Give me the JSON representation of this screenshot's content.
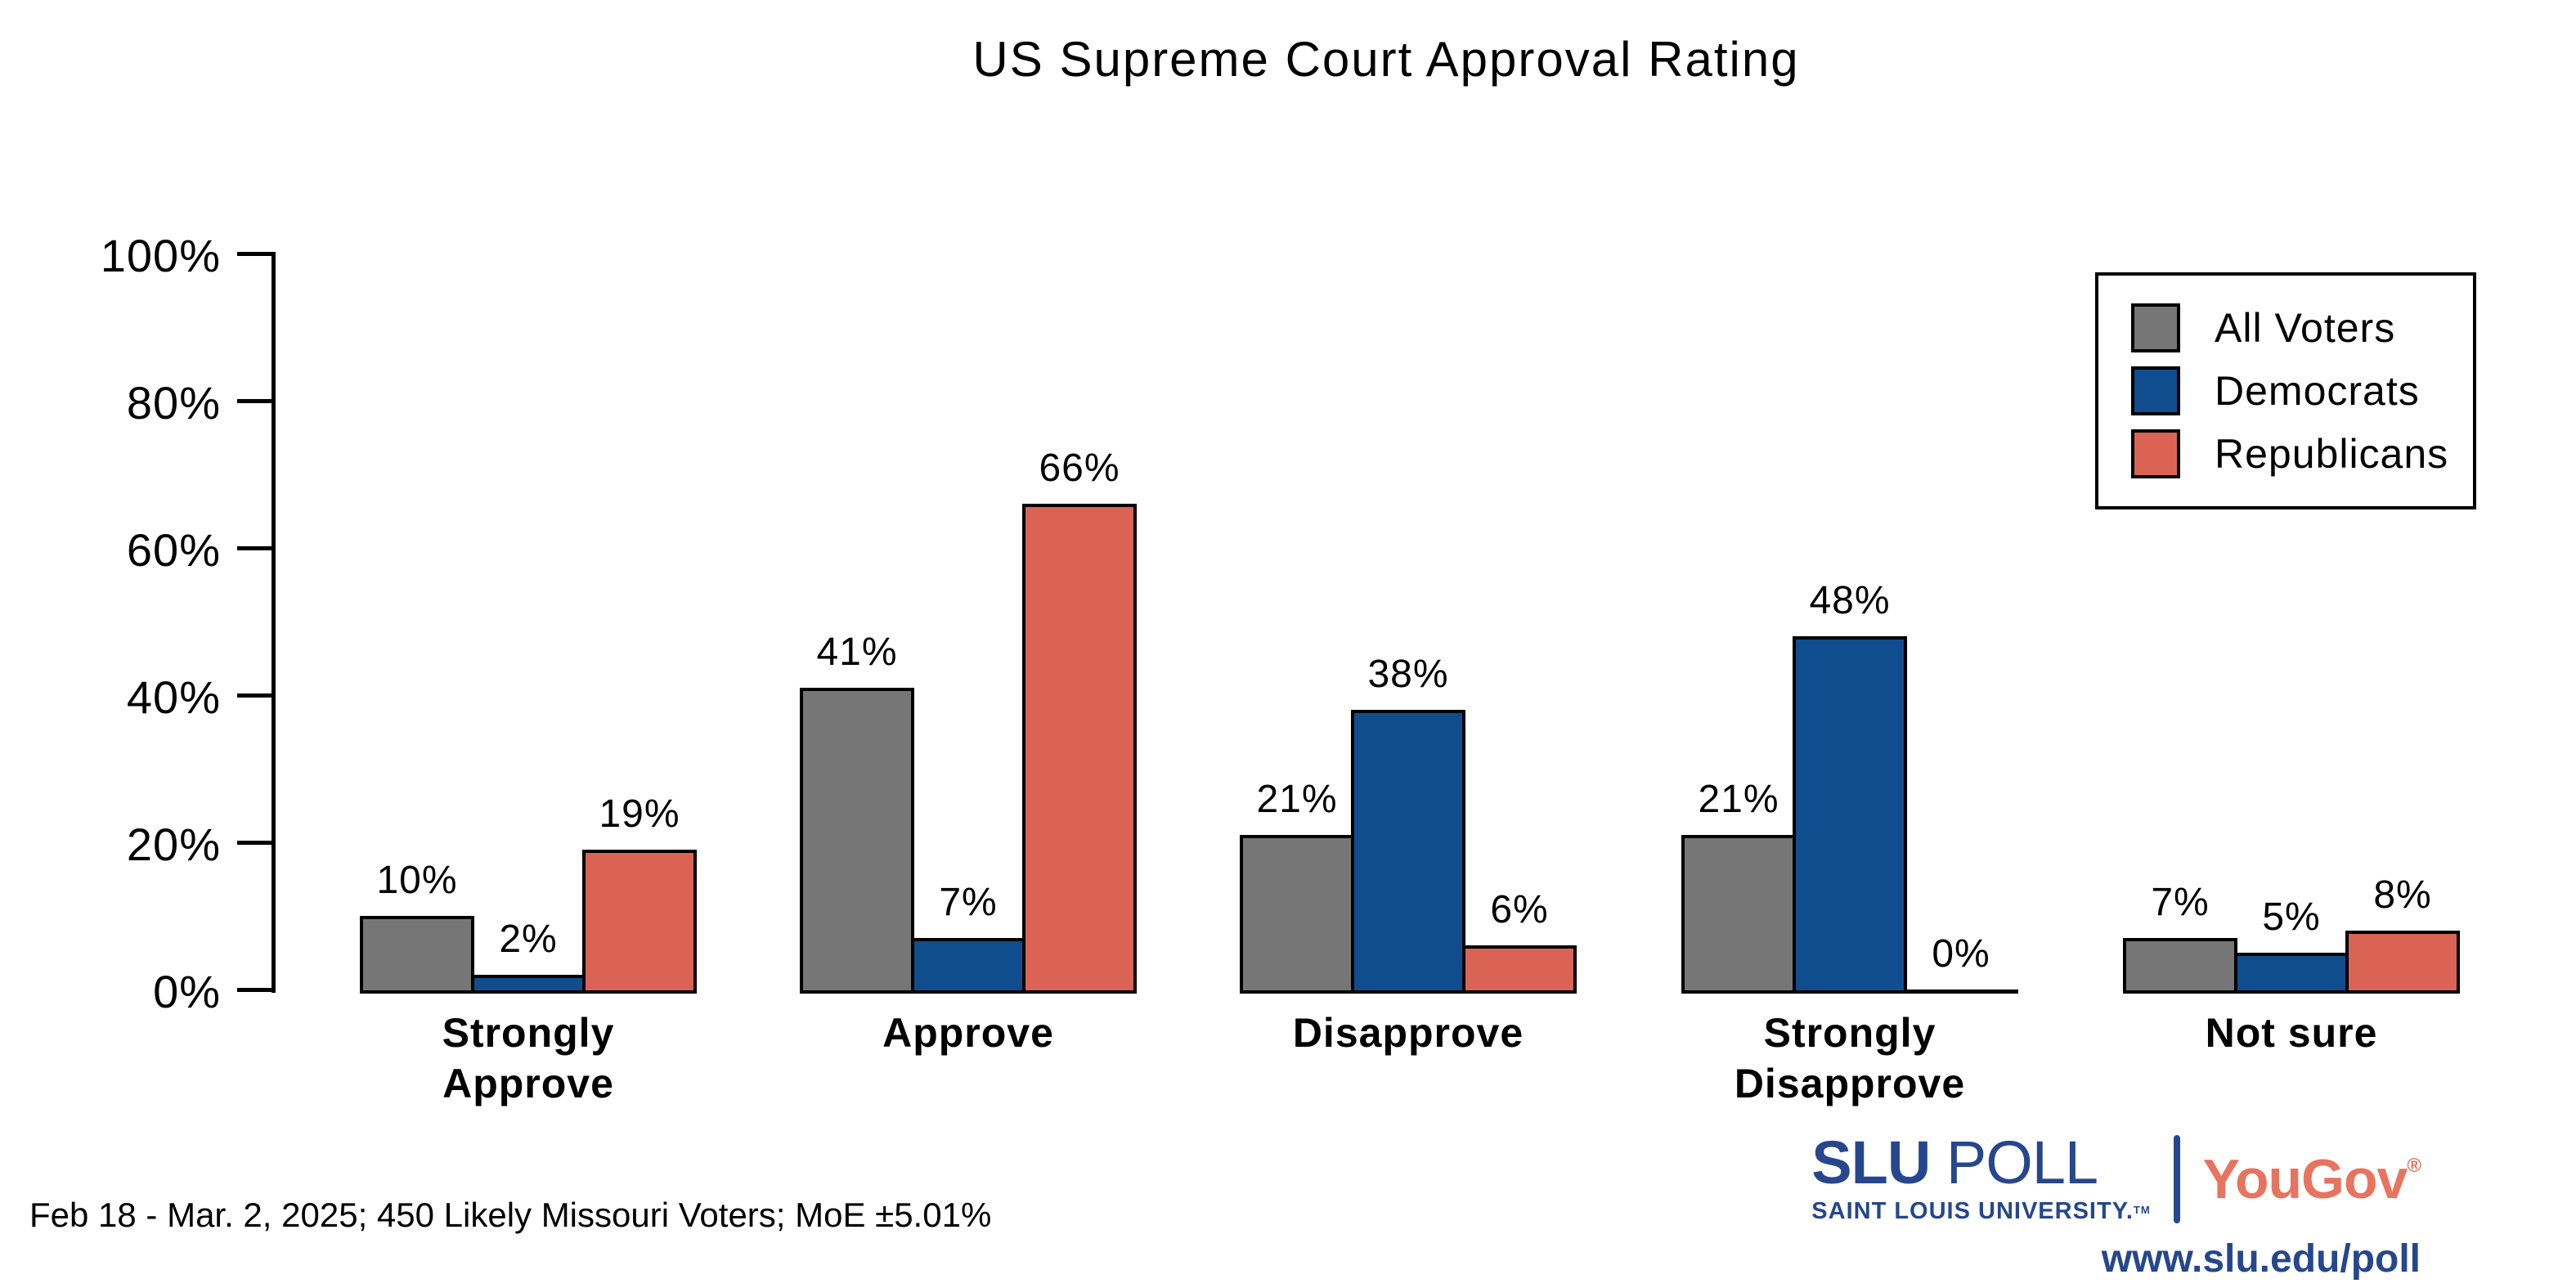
{
  "title": "US Supreme Court Approval Rating",
  "chart_data": {
    "type": "bar",
    "title": "US Supreme Court Approval Rating",
    "categories": [
      "Strongly Approve",
      "Approve",
      "Disapprove",
      "Strongly Disapprove",
      "Not sure"
    ],
    "series": [
      {
        "name": "All Voters",
        "color": "#767676",
        "values": [
          10,
          41,
          21,
          21,
          7
        ]
      },
      {
        "name": "Democrats",
        "color": "#0F4D8F",
        "values": [
          2,
          7,
          38,
          48,
          5
        ]
      },
      {
        "name": "Republicans",
        "color": "#DB6355",
        "values": [
          19,
          66,
          6,
          0,
          8
        ]
      }
    ],
    "xlabel": "",
    "ylabel": "",
    "ylim": [
      0,
      100
    ],
    "yticks": [
      "0%",
      "20%",
      "40%",
      "60%",
      "80%",
      "100%"
    ],
    "grid": false,
    "legend_position": "top-right",
    "value_labels": "percent, above each bar",
    "bar_outline_color": "#000000"
  },
  "footer": {
    "note": "Feb 18 - Mar. 2, 2025; 450 Likely Missouri Voters; MoE ±5.01%"
  },
  "branding": {
    "slu_poll_bold": "SLU",
    "slu_poll_rest": " POLL",
    "slu_subtitle": "SAINT LOUIS UNIVERSITY.",
    "slu_tm": "TM",
    "yougov": "YouGov",
    "yougov_reg": "®",
    "url": "www.slu.edu/poll",
    "slu_blue": "#26478D",
    "yougov_coral": "#E8735F"
  }
}
